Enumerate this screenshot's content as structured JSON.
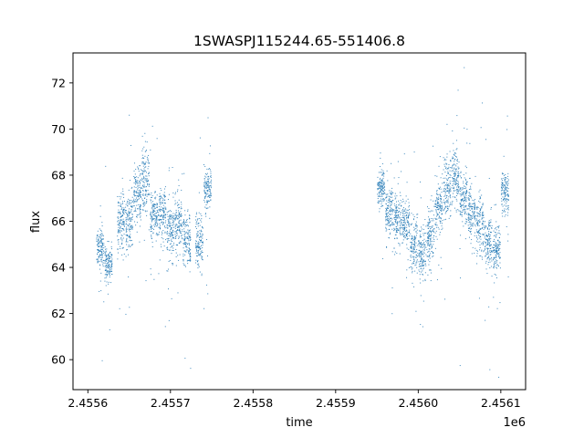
{
  "chart_data": {
    "type": "scatter",
    "title": "1SWASPJ115244.65-551406.8",
    "xlabel": "time",
    "ylabel": "flux",
    "x_offset_label": "1e6",
    "x_tick_labels": [
      "2.4556",
      "2.4557",
      "2.4558",
      "2.4559",
      "2.4560",
      "2.4561"
    ],
    "x_tick_values": [
      2455600,
      2455700,
      2455800,
      2455900,
      2456000,
      2456100
    ],
    "y_tick_labels": [
      "60",
      "62",
      "64",
      "66",
      "68",
      "70",
      "72"
    ],
    "y_tick_values": [
      60,
      62,
      64,
      66,
      68,
      70,
      72
    ],
    "xlim": [
      2455582,
      2456130
    ],
    "ylim": [
      58.7,
      73.3
    ],
    "grid": false,
    "marker_color": "#1f77b4",
    "series": [
      {
        "x": [
          2455615,
          2455625,
          2455640,
          2455650,
          2455660,
          2455670,
          2455680,
          2455690,
          2455700,
          2455710,
          2455720,
          2455735,
          2455745,
          2455955,
          2455965,
          2455975,
          2455985,
          2455995,
          2456005,
          2456015,
          2456025,
          2456035,
          2456045,
          2456055,
          2456065,
          2456075,
          2456085,
          2456095,
          2456105
        ],
        "y": [
          64.8,
          64.2,
          65.9,
          66.0,
          67.1,
          67.8,
          66.2,
          66.3,
          65.6,
          65.8,
          65.2,
          65.1,
          67.4,
          67.5,
          66.4,
          66.1,
          65.9,
          65.0,
          64.6,
          65.3,
          66.4,
          67.5,
          67.9,
          67.0,
          66.3,
          65.8,
          65.1,
          64.8,
          67.3
        ],
        "y_spread": [
          0.4,
          0.4,
          0.6,
          0.6,
          0.7,
          0.7,
          0.5,
          0.5,
          0.6,
          0.6,
          0.6,
          0.6,
          0.5,
          0.4,
          0.5,
          0.5,
          0.5,
          0.6,
          0.6,
          0.6,
          0.6,
          0.6,
          0.6,
          0.6,
          0.6,
          0.6,
          0.5,
          0.5,
          0.5
        ]
      }
    ],
    "observing_windows": [
      [
        2455613,
        2455758
      ],
      [
        2455952,
        2456108
      ]
    ]
  }
}
